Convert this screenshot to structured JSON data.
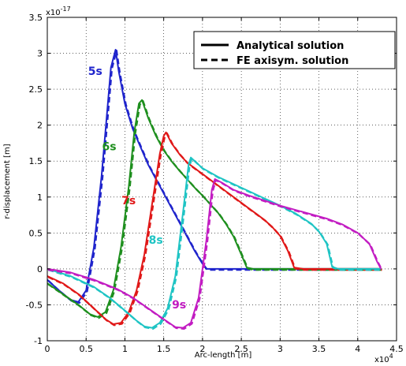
{
  "chart_data": {
    "type": "line",
    "xlabel": "Arc-length [m]",
    "ylabel": "r-displacement [m]",
    "x_exponent": "x10",
    "x_exponent_power": "4",
    "y_exponent": "x10",
    "y_exponent_power": "-17",
    "xlim": [
      0,
      45000
    ],
    "ylim": [
      -1e-17,
      3.5e-17
    ],
    "xticks": [
      0,
      5000,
      10000,
      15000,
      20000,
      25000,
      30000,
      35000,
      40000,
      45000
    ],
    "xtick_labels": [
      "0",
      "0.5",
      "1",
      "1.5",
      "2",
      "2.5",
      "3",
      "3.5",
      "4",
      "4.5"
    ],
    "yticks": [
      -1e-17,
      -5e-18,
      0,
      5e-18,
      1e-17,
      1.5e-17,
      2e-17,
      2.5e-17,
      3e-17,
      3.5e-17
    ],
    "ytick_labels": [
      "-1",
      "-0.5",
      "0",
      "0.5",
      "1",
      "1.5",
      "2",
      "2.5",
      "3",
      "3.5"
    ],
    "grid": true,
    "legend_position": "top-right",
    "legend": [
      {
        "label": "Analytical solution",
        "style": "solid"
      },
      {
        "label": "FE axisym. solution",
        "style": "dashed"
      }
    ],
    "series": [
      {
        "name": "5s",
        "color": "#1f24cc",
        "x": [
          0,
          1500,
          3000,
          4000,
          5000,
          6000,
          7000,
          7800,
          8200,
          8800,
          9200,
          10000,
          11000,
          12000,
          13000,
          14000,
          15000,
          16000,
          17000,
          18000,
          19000,
          20000,
          20500,
          21000,
          25000,
          30000,
          35000,
          40000,
          43000
        ],
        "y": [
          -1.5e-18,
          -3e-18,
          -4.3e-18,
          -4.6e-18,
          -3e-18,
          3e-18,
          1.3e-17,
          2.3e-17,
          2.8e-17,
          3.05e-17,
          2.75e-17,
          2.3e-17,
          1.95e-17,
          1.7e-17,
          1.45e-17,
          1.25e-17,
          1.05e-17,
          8.5e-18,
          6.5e-18,
          4.5e-18,
          2.5e-18,
          7e-19,
          0,
          0,
          0,
          0,
          0,
          0,
          0
        ]
      },
      {
        "name": "6s",
        "color": "#1e8f1e",
        "x": [
          0,
          2000,
          4000,
          5500,
          6500,
          7500,
          8500,
          9500,
          10500,
          11200,
          11800,
          12200,
          13000,
          14000,
          15000,
          16000,
          17000,
          18000,
          19000,
          20000,
          21000,
          22000,
          23000,
          24000,
          25000,
          25700,
          26500,
          35000,
          43000
        ],
        "y": [
          -2e-18,
          -3.5e-18,
          -5e-18,
          -6.3e-18,
          -6.7e-18,
          -6e-18,
          -3e-18,
          3e-18,
          1.15e-17,
          1.9e-17,
          2.3e-17,
          2.35e-17,
          2.1e-17,
          1.85e-17,
          1.65e-17,
          1.5e-17,
          1.37e-17,
          1.25e-17,
          1.13e-17,
          1.02e-17,
          9e-18,
          7.8e-18,
          6.3e-18,
          4.5e-18,
          2e-18,
          2e-19,
          0,
          0,
          0
        ]
      },
      {
        "name": "7s",
        "color": "#e01818",
        "x": [
          0,
          2000,
          4000,
          6000,
          7500,
          8500,
          9500,
          10500,
          11500,
          12500,
          13500,
          14500,
          15000,
          15300,
          16000,
          17000,
          18000,
          19000,
          20000,
          21000,
          22000,
          23000,
          24000,
          25000,
          26000,
          27000,
          28000,
          29000,
          30000,
          31000,
          31800,
          33000,
          43000
        ],
        "y": [
          -1e-18,
          -2e-18,
          -3.5e-18,
          -5.5e-18,
          -7e-18,
          -7.7e-18,
          -7.5e-18,
          -6e-18,
          -3e-18,
          2e-18,
          9e-18,
          1.6e-17,
          1.85e-17,
          1.9e-17,
          1.75e-17,
          1.6e-17,
          1.48e-17,
          1.4e-17,
          1.32e-17,
          1.24e-17,
          1.16e-17,
          1.08e-17,
          1e-17,
          9.2e-18,
          8.4e-18,
          7.6e-18,
          6.8e-18,
          5.8e-18,
          4.6e-18,
          2.5e-18,
          2e-19,
          0,
          0
        ]
      },
      {
        "name": "8s",
        "color": "#1fc4c4",
        "x": [
          0,
          3000,
          6000,
          8000,
          10000,
          11500,
          12500,
          13500,
          14500,
          15500,
          16500,
          17500,
          18200,
          18500,
          19000,
          20000,
          22000,
          24000,
          26000,
          28000,
          30000,
          32000,
          34000,
          35000,
          36000,
          36700,
          37500,
          43000
        ],
        "y": [
          0,
          -1e-18,
          -2.5e-18,
          -4e-18,
          -5.8e-18,
          -7.2e-18,
          -8e-18,
          -8.2e-18,
          -7.5e-18,
          -5.5e-18,
          -1e-18,
          8e-18,
          1.45e-17,
          1.55e-17,
          1.5e-17,
          1.4e-17,
          1.28e-17,
          1.18e-17,
          1.08e-17,
          9.8e-18,
          8.8e-18,
          7.7e-18,
          6.3e-18,
          5.2e-18,
          3.5e-18,
          3e-19,
          0,
          0
        ]
      },
      {
        "name": "9s",
        "color": "#c21cc2",
        "x": [
          0,
          3000,
          6000,
          9000,
          11000,
          13000,
          15000,
          16500,
          17500,
          18500,
          19500,
          20500,
          21200,
          21600,
          22500,
          24000,
          26000,
          28000,
          30000,
          32000,
          34000,
          36000,
          38000,
          40000,
          41500,
          42500,
          43000
        ],
        "y": [
          0,
          -5e-19,
          -1.5e-18,
          -2.8e-18,
          -4e-18,
          -5.5e-18,
          -7e-18,
          -8.1e-18,
          -8.2e-18,
          -7.5e-18,
          -4e-18,
          4e-18,
          1.1e-17,
          1.25e-17,
          1.2e-17,
          1.1e-17,
          1.02e-17,
          9.5e-18,
          8.8e-18,
          8.2e-18,
          7.6e-18,
          7e-18,
          6.2e-18,
          5e-18,
          3.5e-18,
          1e-18,
          0
        ]
      }
    ]
  }
}
